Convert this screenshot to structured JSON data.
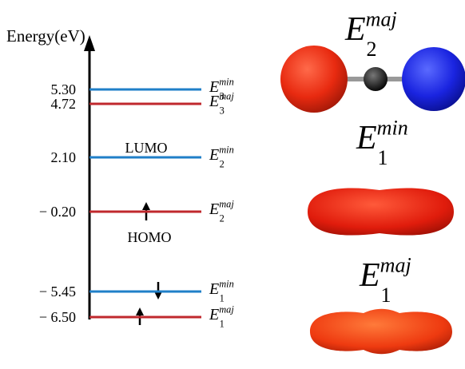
{
  "axis_label": "Energy(eV)",
  "levels": [
    {
      "value": "5.30",
      "symbol": "E",
      "sub": "3",
      "sup": "min",
      "color": "#1f7fc8"
    },
    {
      "value": "4.72",
      "symbol": "E",
      "sub": "3",
      "sup": "maj",
      "color": "#c0282d"
    },
    {
      "value": "2.10",
      "symbol": "E",
      "sub": "2",
      "sup": "min",
      "color": "#1f7fc8"
    },
    {
      "value": "− 0.20",
      "symbol": "E",
      "sub": "2",
      "sup": "maj",
      "color": "#c0282d"
    },
    {
      "value": "− 5.45",
      "symbol": "E",
      "sub": "1",
      "sup": "min",
      "color": "#1f7fc8"
    },
    {
      "value": "− 6.50",
      "symbol": "E",
      "sub": "1",
      "sup": "maj",
      "color": "#c0282d"
    }
  ],
  "lumo": "LUMO",
  "homo": "HOMO",
  "orbitals": [
    {
      "symbol": "E",
      "sub": "2",
      "sup": "maj"
    },
    {
      "symbol": "E",
      "sub": "1",
      "sup": "min"
    },
    {
      "symbol": "E",
      "sub": "1",
      "sup": "maj"
    }
  ]
}
